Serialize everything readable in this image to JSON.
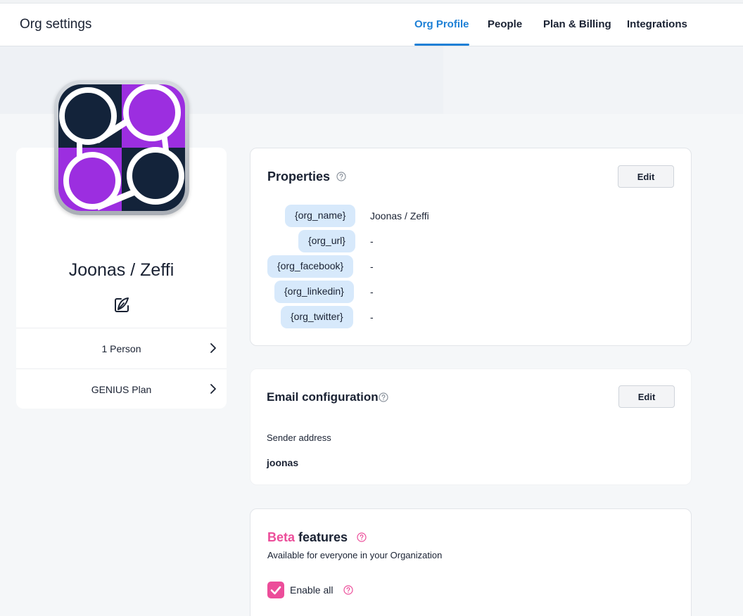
{
  "header": {
    "title": "Org settings",
    "tabs": [
      {
        "label": "Org Profile",
        "active": true
      },
      {
        "label": "People",
        "active": false
      },
      {
        "label": "Plan & Billing",
        "active": false
      },
      {
        "label": "Integrations",
        "active": false
      }
    ]
  },
  "org": {
    "name": "Joonas / Zeffi",
    "rows": [
      {
        "label": "1 Person"
      },
      {
        "label": "GENIUS Plan"
      }
    ]
  },
  "properties": {
    "title": "Properties",
    "edit_label": "Edit",
    "items": [
      {
        "key": "{org_name}",
        "value": "Joonas / Zeffi"
      },
      {
        "key": "{org_url}",
        "value": "-"
      },
      {
        "key": "{org_facebook}",
        "value": "-"
      },
      {
        "key": "{org_linkedin}",
        "value": "-"
      },
      {
        "key": "{org_twitter}",
        "value": "-"
      }
    ]
  },
  "email_config": {
    "title": "Email configuration",
    "edit_label": "Edit",
    "sender_label": "Sender address",
    "sender_value": "joonas"
  },
  "beta": {
    "title_accent": "Beta",
    "title_rest": "features",
    "subtitle": "Available for everyone in your Organization",
    "enable_all_label": "Enable all",
    "enable_all_checked": true
  },
  "colors": {
    "accent": "#1d80d6",
    "beta_pink": "#ec4d9a",
    "chip_bg": "#d7e9fb",
    "avatar_dark": "#13233a",
    "avatar_purple": "#9c2ee0"
  }
}
